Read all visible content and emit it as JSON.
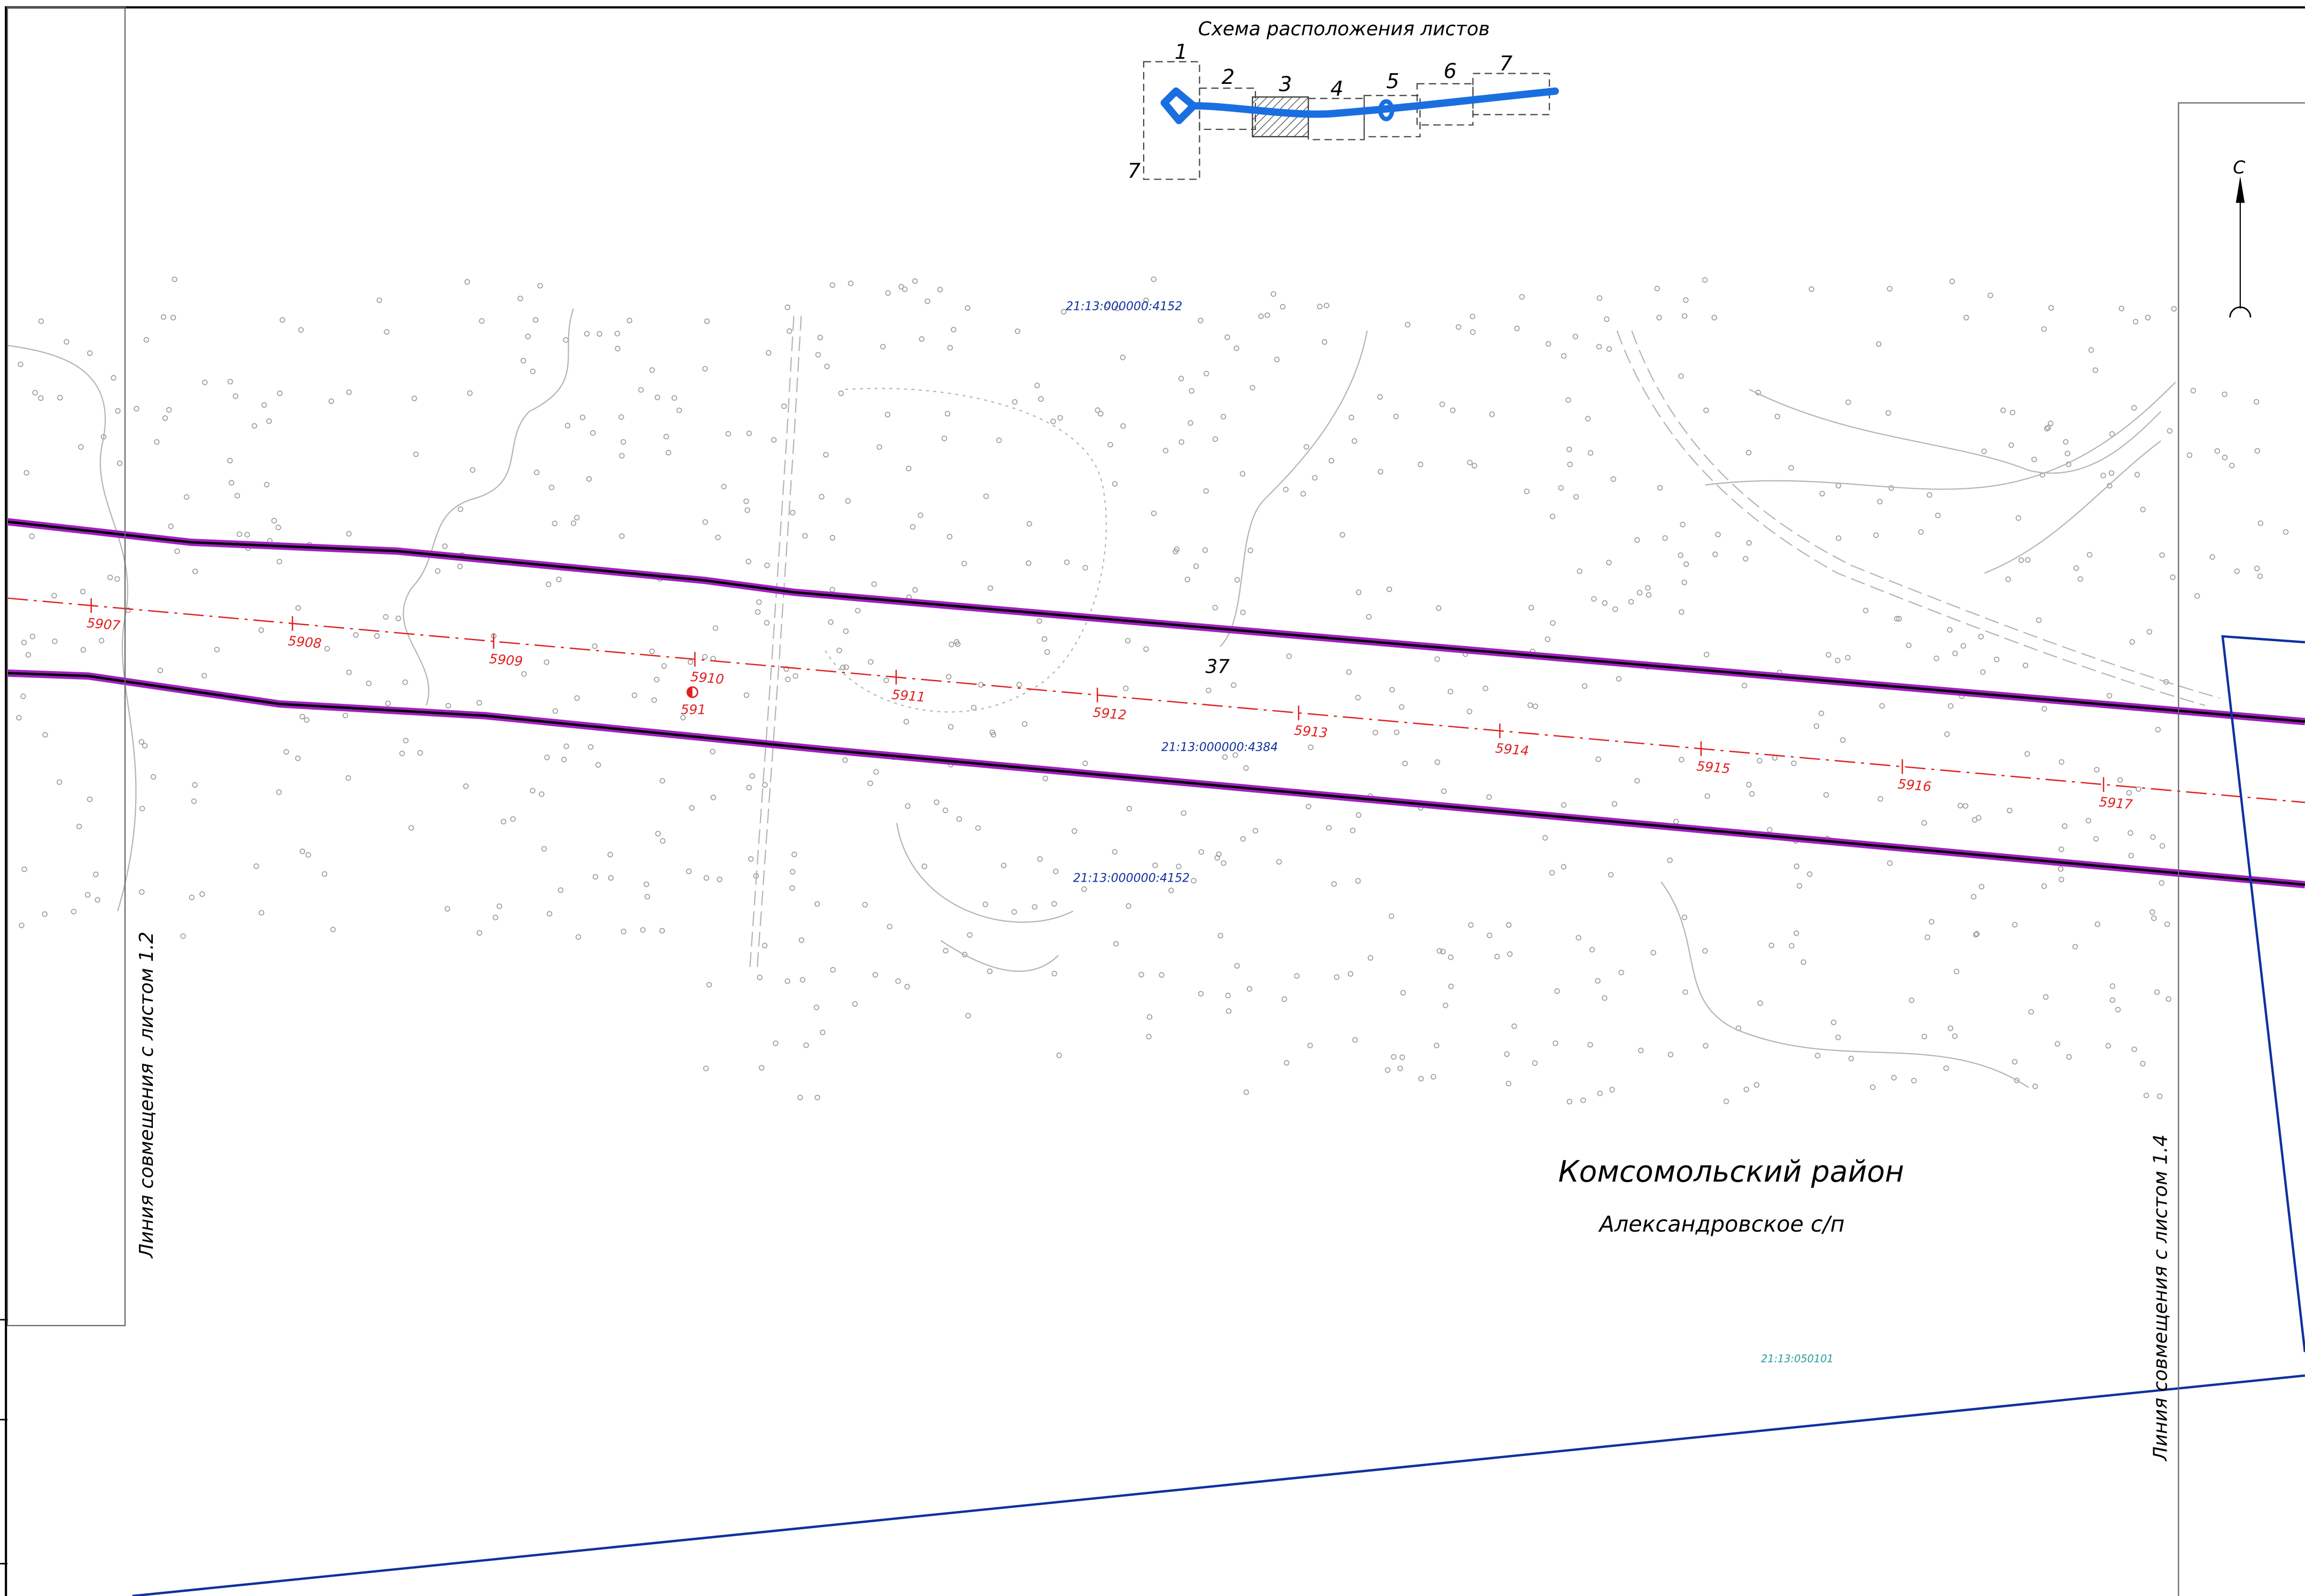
{
  "inset": {
    "title": "Схема расположения листов",
    "sheets": [
      "1",
      "2",
      "3",
      "4",
      "5",
      "6",
      "7"
    ],
    "side_sheet": "7"
  },
  "pickets": [
    "5907",
    "5908",
    "5909",
    "5910",
    "5911",
    "5912",
    "5913",
    "5914",
    "5915",
    "5916",
    "5917"
  ],
  "point_label": "591",
  "parcel_number": "37",
  "cadastral": [
    "21:13:000000:4152",
    "21:13:000000:4384",
    "21:13:000000:4152"
  ],
  "district": "Комсомольский район",
  "settlement": "Александровское с/п",
  "quarter": "21:13:050101",
  "match_left": "Линия совмещения с листом 1.2",
  "match_right": "Линия совмещения с  листом 1.4",
  "north": "С"
}
